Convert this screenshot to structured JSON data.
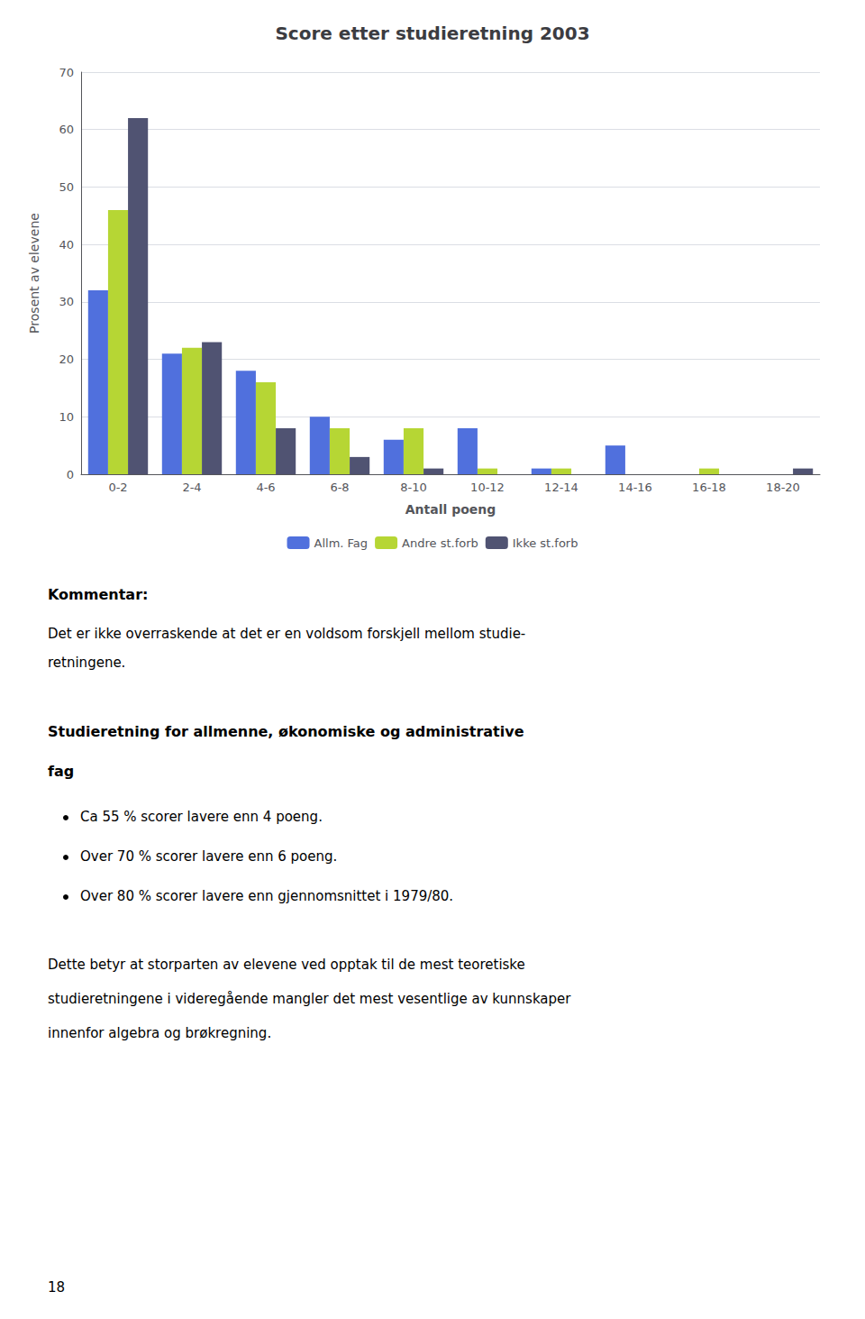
{
  "chart_data": {
    "type": "bar",
    "title": "Score etter studieretning 2003",
    "xlabel": "Antall poeng",
    "ylabel": "Prosent av elevene",
    "categories": [
      "0-2",
      "2-4",
      "4-6",
      "6-8",
      "8-10",
      "10-12",
      "12-14",
      "14-16",
      "16-18",
      "18-20"
    ],
    "series": [
      {
        "name": "Allm. Fag",
        "values": [
          32,
          21,
          18,
          10,
          6,
          8,
          1,
          5,
          0,
          0
        ]
      },
      {
        "name": "Andre st.forb",
        "values": [
          46,
          22,
          16,
          8,
          8,
          1,
          1,
          0,
          1,
          0
        ]
      },
      {
        "name": "Ikke st.forb",
        "values": [
          62,
          23,
          8,
          3,
          1,
          0,
          0,
          0,
          0,
          1
        ]
      }
    ],
    "ylim": [
      0,
      70
    ],
    "yticks": [
      0,
      10,
      20,
      30,
      40,
      50,
      60,
      70
    ],
    "grid": true,
    "legend": "bottom",
    "annotations": [
      "Kommentar:",
      "Det er ikke overraskende at det er en voldsom forskjell mellom studie-",
      "retningene.",
      "Studieretning for allmenne, økonomiske og administrative",
      "fag",
      "Ca 55 % scorer lavere enn 4 poeng.",
      "Over 70 % scorer lavere enn 6 poeng.",
      "Over 80 % scorer lavere enn gjennomsnittet i 1979/80.",
      "Dette betyr at storparten av elevene ved opptak til de mest teoretiske",
      "studieretningene i videregående mangler det mest vesentlige av kunnskaper",
      "innenfor algebra og brøkregning.",
      "18"
    ]
  }
}
